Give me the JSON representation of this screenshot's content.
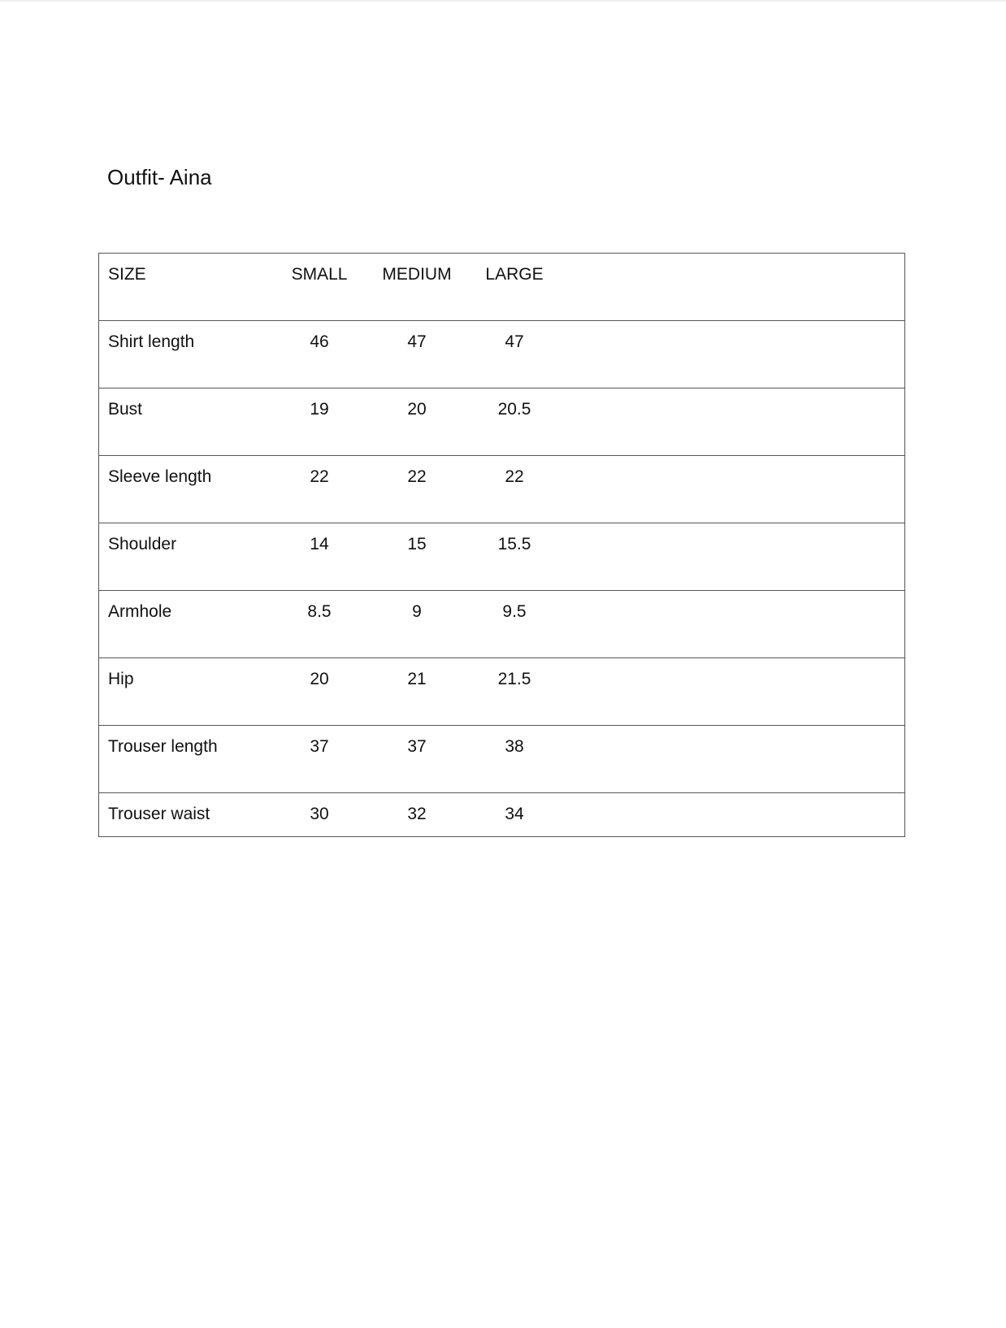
{
  "title": "Outfit-  Aina",
  "table": {
    "headers": [
      "SIZE",
      "SMALL",
      "MEDIUM",
      "LARGE"
    ],
    "rows": [
      [
        "Shirt length",
        "46",
        "47",
        "47"
      ],
      [
        "Bust",
        "19",
        "20",
        "20.5"
      ],
      [
        "Sleeve length",
        "22",
        "22",
        "22"
      ],
      [
        "Shoulder",
        "14",
        "15",
        "15.5"
      ],
      [
        "Armhole",
        "8.5",
        "9",
        "9.5"
      ],
      [
        "Hip",
        "20",
        "21",
        "21.5"
      ],
      [
        "Trouser length",
        "37",
        "37",
        "38"
      ],
      [
        "Trouser waist",
        "30",
        "32",
        "34"
      ]
    ]
  }
}
